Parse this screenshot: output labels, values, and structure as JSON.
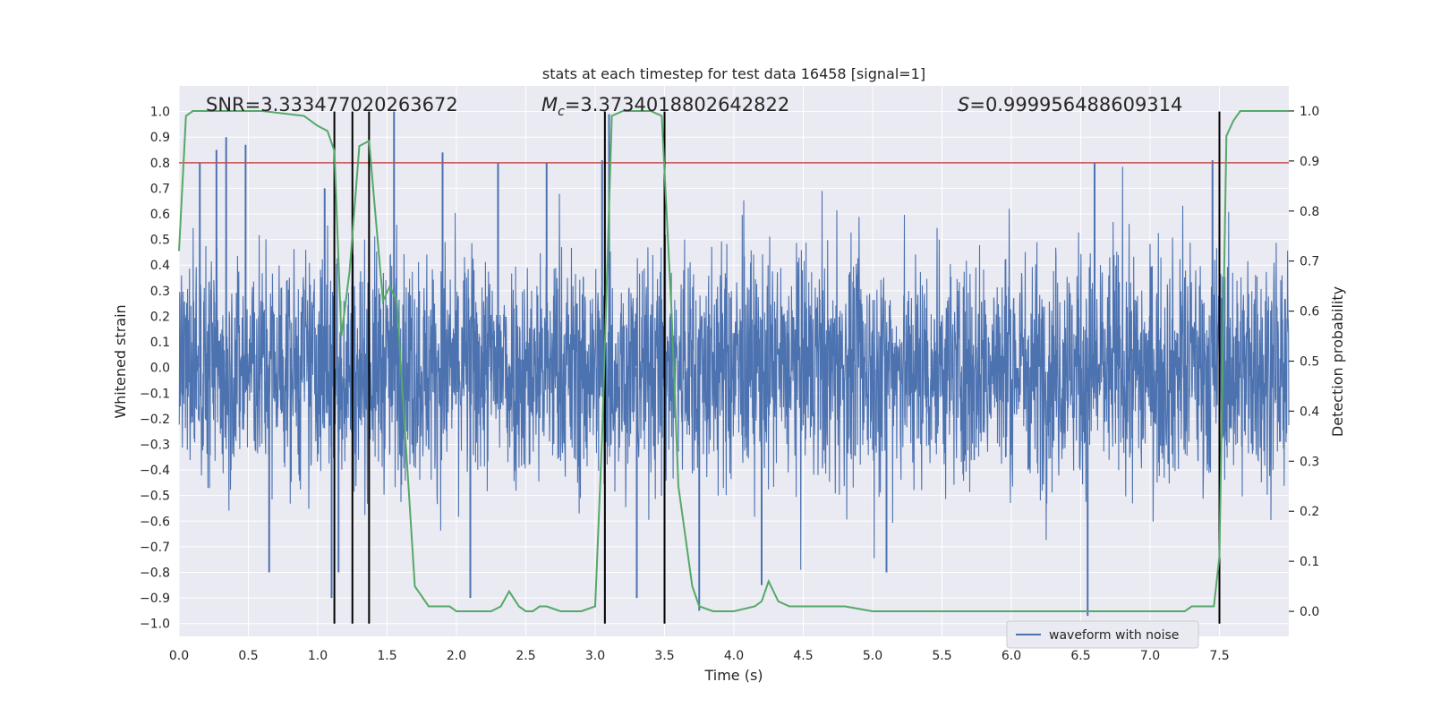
{
  "chart_data": {
    "type": "line",
    "title": "stats at each timestep for test data 16458 [signal=1]",
    "xlabel": "Time (s)",
    "ylabel": "Whitened strain",
    "y2label": "Detection probability",
    "xlim": [
      0.0,
      8.0
    ],
    "ylim": [
      -1.05,
      1.1
    ],
    "y2lim": [
      -0.05,
      1.05
    ],
    "x_ticks": [
      0.0,
      0.5,
      1.0,
      1.5,
      2.0,
      2.5,
      3.0,
      3.5,
      4.0,
      4.5,
      5.0,
      5.5,
      6.0,
      6.5,
      7.0,
      7.5
    ],
    "y_ticks": [
      1.0,
      0.9,
      0.8,
      0.7,
      0.6,
      0.5,
      0.4,
      0.3,
      0.2,
      0.1,
      0.0,
      -0.1,
      -0.2,
      -0.3,
      -0.4,
      -0.5,
      -0.6,
      -0.7,
      -0.8,
      -0.9,
      -1.0
    ],
    "y2_ticks": [
      1.0,
      0.9,
      0.8,
      0.7,
      0.6,
      0.5,
      0.4,
      0.3,
      0.2,
      0.1,
      0.0
    ],
    "grid": true,
    "legend_position": "bottom-right",
    "annotations": {
      "snr_label": "SNR=3.333477020263672",
      "mc_symbol": "M",
      "mc_subscript": "c",
      "mc_value": "=3.3734018802642822",
      "s_symbol": "S",
      "s_value": "=0.999956488609314"
    },
    "series": [
      {
        "name": "waveform with noise",
        "axis": "left",
        "color": "#4c72b0",
        "kind": "noise",
        "typical_amplitude": 0.42,
        "peak_events": [
          {
            "x": 0.15,
            "y": 0.8
          },
          {
            "x": 0.27,
            "y": 0.85
          },
          {
            "x": 0.34,
            "y": 0.9
          },
          {
            "x": 0.48,
            "y": 0.87
          },
          {
            "x": 1.05,
            "y": 0.7
          },
          {
            "x": 1.55,
            "y": 1.0
          },
          {
            "x": 1.9,
            "y": 0.84
          },
          {
            "x": 2.3,
            "y": 0.8
          },
          {
            "x": 2.65,
            "y": 0.8
          },
          {
            "x": 3.05,
            "y": 0.81
          },
          {
            "x": 3.1,
            "y": 0.99
          },
          {
            "x": 3.5,
            "y": 0.8
          },
          {
            "x": 6.6,
            "y": 0.8
          },
          {
            "x": 7.45,
            "y": 0.81
          },
          {
            "x": 1.1,
            "y": -0.9
          },
          {
            "x": 1.15,
            "y": -0.8
          },
          {
            "x": 2.1,
            "y": -0.9
          },
          {
            "x": 3.3,
            "y": -0.9
          },
          {
            "x": 3.75,
            "y": -0.95
          },
          {
            "x": 4.2,
            "y": -0.85
          },
          {
            "x": 6.55,
            "y": -0.97
          },
          {
            "x": 7.5,
            "y": -0.9
          },
          {
            "x": 0.65,
            "y": -0.8
          },
          {
            "x": 5.1,
            "y": -0.8
          }
        ]
      },
      {
        "name": "",
        "axis": "right",
        "color": "#55a868",
        "x": [
          0.0,
          0.05,
          0.1,
          0.2,
          0.6,
          0.9,
          1.0,
          1.07,
          1.12,
          1.17,
          1.23,
          1.3,
          1.37,
          1.42,
          1.47,
          1.52,
          1.57,
          1.62,
          1.7,
          1.75,
          1.8,
          1.85,
          1.95,
          2.0,
          2.1,
          2.25,
          2.32,
          2.38,
          2.45,
          2.5,
          2.55,
          2.6,
          2.65,
          2.75,
          2.9,
          3.0,
          3.05,
          3.12,
          3.2,
          3.3,
          3.4,
          3.48,
          3.55,
          3.6,
          3.7,
          3.75,
          3.85,
          4.0,
          4.15,
          4.2,
          4.25,
          4.32,
          4.4,
          4.55,
          4.62,
          4.7,
          4.8,
          5.0,
          5.3,
          5.5,
          5.6,
          5.7,
          5.8,
          6.0,
          6.5,
          7.0,
          7.2,
          7.25,
          7.3,
          7.4,
          7.46,
          7.5,
          7.55,
          7.6,
          7.65,
          7.72,
          7.8,
          8.0
        ],
        "values": [
          0.72,
          0.99,
          1.0,
          1.0,
          1.0,
          0.99,
          0.97,
          0.96,
          0.92,
          0.55,
          0.68,
          0.93,
          0.94,
          0.78,
          0.62,
          0.65,
          0.62,
          0.4,
          0.05,
          0.03,
          0.01,
          0.01,
          0.01,
          0.0,
          0.0,
          0.0,
          0.01,
          0.04,
          0.01,
          0.0,
          0.0,
          0.01,
          0.01,
          0.0,
          0.0,
          0.01,
          0.35,
          0.99,
          1.0,
          1.0,
          1.0,
          0.99,
          0.6,
          0.25,
          0.05,
          0.01,
          0.0,
          0.0,
          0.01,
          0.02,
          0.06,
          0.02,
          0.01,
          0.01,
          0.01,
          0.01,
          0.01,
          0.0,
          0.0,
          0.0,
          0.0,
          0.0,
          0.0,
          0.0,
          0.0,
          0.0,
          0.0,
          0.0,
          0.01,
          0.01,
          0.01,
          0.11,
          0.95,
          0.98,
          1.0,
          1.0,
          1.0,
          1.0
        ]
      }
    ],
    "threshold_line": {
      "axis": "left",
      "y": 0.8,
      "color": "#c44e52"
    },
    "vertical_lines": {
      "x": [
        1.12,
        1.25,
        1.37,
        3.07,
        3.5,
        7.5
      ],
      "y_from": -1.0,
      "y_to": 1.0,
      "color": "#000000"
    }
  }
}
